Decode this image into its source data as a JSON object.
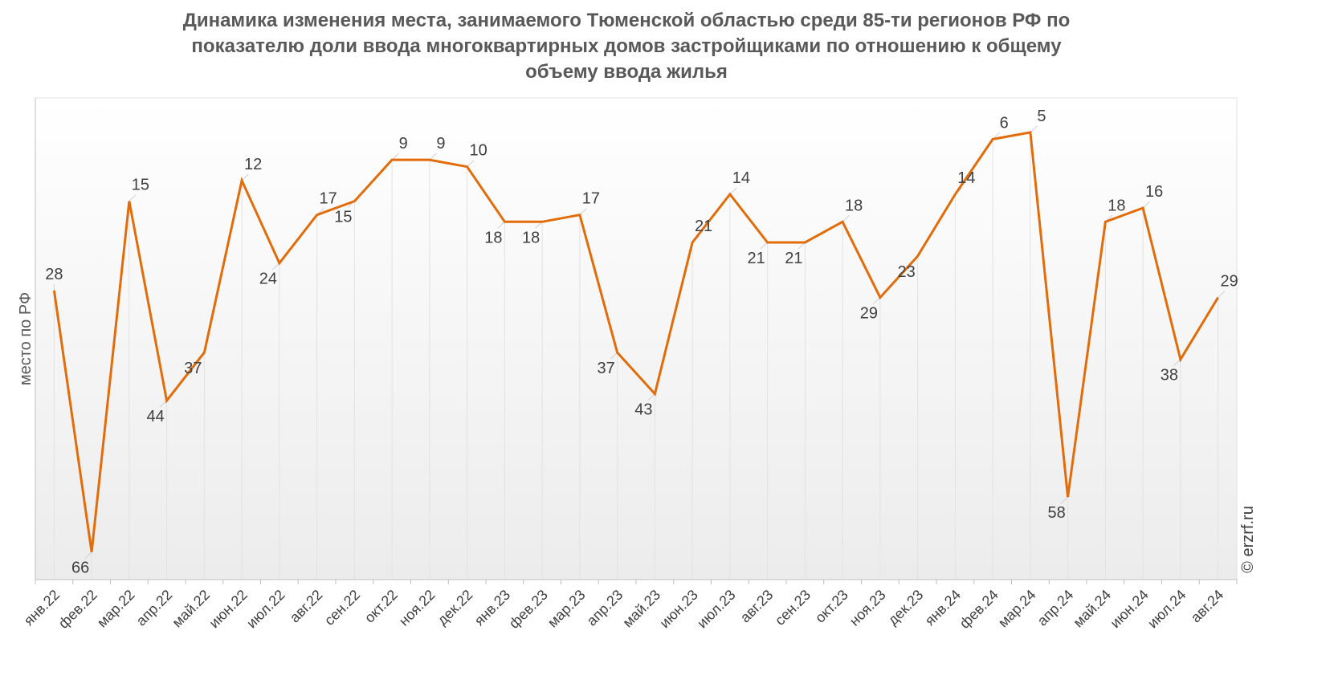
{
  "title_lines": [
    "Динамика изменения места, занимаемого Тюменской областью среди 85-ти регионов РФ по",
    "показателю доли ввода многоквартирных домов застройщиками по отношению к общему",
    "объему ввода жилья"
  ],
  "credit": "© erzrf.ru",
  "chart_data": {
    "type": "line",
    "title": "Динамика изменения места, занимаемого Тюменской областью среди 85-ти регионов РФ по показателю доли ввода многоквартирных домов застройщиками по отношению к общему объему ввода жилья",
    "ylabel": "место по РФ",
    "xlabel": "",
    "y_reversed": true,
    "ylim": [
      70,
      0
    ],
    "grid": "vertical",
    "legend": "none",
    "line_color": "#E36C0A",
    "categories": [
      "янв.22",
      "фев.22",
      "мар.22",
      "апр.22",
      "май.22",
      "июн.22",
      "июл.22",
      "авг.22",
      "сен.22",
      "окт.22",
      "ноя.22",
      "дек.22",
      "янв.23",
      "фев.23",
      "мар.23",
      "апр.23",
      "май.23",
      "июн.23",
      "июл.23",
      "авг.23",
      "сен.23",
      "окт.23",
      "ноя.23",
      "дек.23",
      "янв.24",
      "фев.24",
      "мар.24",
      "апр.24",
      "май.24",
      "июн.24",
      "июл.24",
      "авг.24"
    ],
    "values": [
      28,
      66,
      15,
      44,
      37,
      12,
      24,
      17,
      15,
      9,
      9,
      10,
      18,
      18,
      17,
      37,
      43,
      21,
      14,
      21,
      21,
      18,
      29,
      23,
      14,
      6,
      5,
      58,
      18,
      16,
      38,
      29
    ]
  }
}
